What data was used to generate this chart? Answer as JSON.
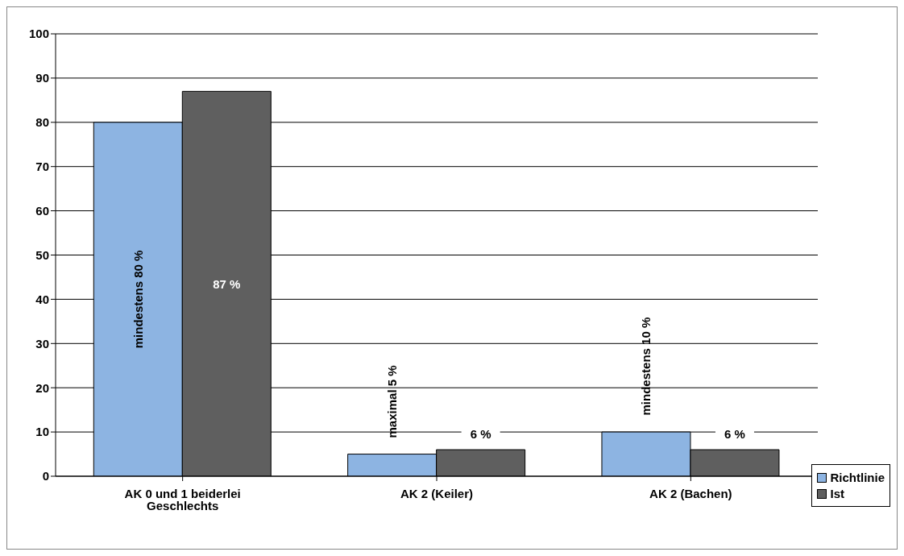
{
  "chart_data": {
    "type": "bar",
    "categories": [
      "AK 0 und 1 beiderlei Geschlechts",
      "AK 2 (Keiler)",
      "AK 2 (Bachen)"
    ],
    "series": [
      {
        "name": "Richtlinie",
        "color": "#8db4e2",
        "values": [
          80,
          5,
          10
        ],
        "value_labels": [
          "mindestens 80 %",
          "maximal 5 %",
          "mindestens 10 %"
        ]
      },
      {
        "name": "Ist",
        "color": "#5f5f5f",
        "values": [
          87,
          6,
          6
        ],
        "value_labels": [
          "87 %",
          "6 %",
          "6 %"
        ]
      }
    ],
    "ylim": [
      0,
      100
    ],
    "yticks": [
      0,
      10,
      20,
      30,
      40,
      50,
      60,
      70,
      80,
      90,
      100
    ],
    "grid": "y",
    "legend": "bottom right"
  }
}
